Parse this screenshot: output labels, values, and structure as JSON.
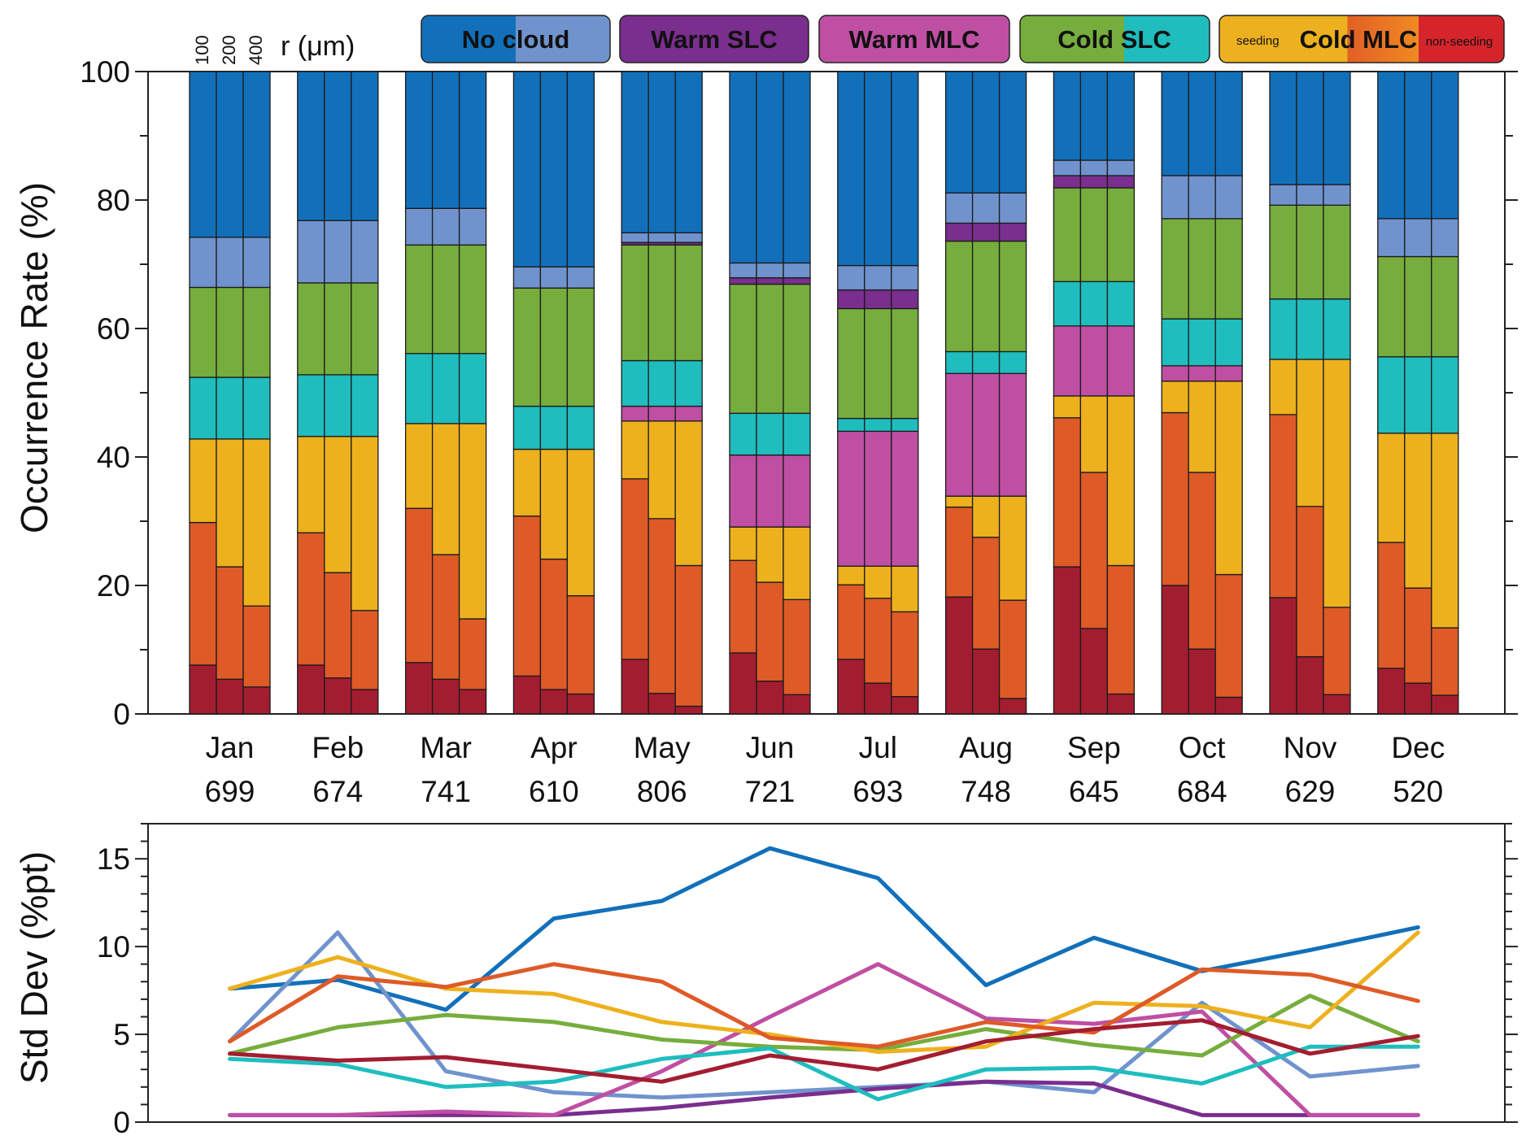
{
  "chart_data": [
    {
      "type": "bar",
      "subtype": "stacked",
      "ylabel": "Occurrence Rate (%)",
      "ylim": [
        0,
        100
      ],
      "yticks": [
        0,
        20,
        40,
        60,
        80,
        100
      ],
      "months": [
        "Jan",
        "Feb",
        "Mar",
        "Apr",
        "May",
        "Jun",
        "Jul",
        "Aug",
        "Sep",
        "Oct",
        "Nov",
        "Dec"
      ],
      "counts": [
        "699",
        "674",
        "741",
        "610",
        "806",
        "721",
        "693",
        "748",
        "645",
        "684",
        "629",
        "520"
      ],
      "radius_header": {
        "ticks": [
          "100",
          "200",
          "400"
        ],
        "label": "r (μm)"
      },
      "legend": [
        {
          "label": "No cloud",
          "colors": [
            "#1270BA",
            "#7093CD"
          ]
        },
        {
          "label": "Warm SLC",
          "colors": [
            "#7A2E8E"
          ]
        },
        {
          "label": "Warm MLC",
          "colors": [
            "#BF4FA3"
          ]
        },
        {
          "label": "Cold SLC",
          "colors": [
            "#76AD3C",
            "#1FBDBE"
          ]
        },
        {
          "label": "Cold MLC",
          "colors": [
            "#EDB01E",
            "#E25F25",
            "#D6242B"
          ],
          "left_note": "seeding",
          "right_note": "non-seeding"
        }
      ],
      "segment_order": [
        "cold_mlc_nonseeding",
        "cold_mlc_partial",
        "cold_mlc_seeding",
        "warm_mlc",
        "cold_slc_ice",
        "cold_slc_liquid",
        "warm_slc",
        "no_cloud_light",
        "no_cloud"
      ],
      "segment_colors": {
        "cold_mlc_nonseeding": "#A31D31",
        "cold_mlc_partial": "#DE5A27",
        "cold_mlc_seeding": "#EDB11E",
        "warm_mlc": "#BF4FA3",
        "cold_slc_ice": "#1FBDBE",
        "cold_slc_liquid": "#76AD3C",
        "warm_slc": "#7A2E8E",
        "no_cloud_light": "#7093CD",
        "no_cloud": "#1270BA"
      },
      "cumulative_boundaries": {
        "Jan": [
          [
            7.6,
            29.8,
            42.8,
            42.8,
            52.4,
            66.4,
            66.4,
            74.2,
            100
          ],
          [
            5.4,
            22.9,
            42.8,
            42.8,
            52.4,
            66.4,
            66.4,
            74.2,
            100
          ],
          [
            4.2,
            16.8,
            42.8,
            42.8,
            52.4,
            66.4,
            66.4,
            74.2,
            100
          ]
        ],
        "Feb": [
          [
            7.6,
            28.2,
            43.2,
            43.2,
            52.8,
            67.1,
            67.1,
            76.8,
            100
          ],
          [
            5.6,
            22.0,
            43.2,
            43.2,
            52.8,
            67.1,
            67.1,
            76.8,
            100
          ],
          [
            3.8,
            16.1,
            43.2,
            43.2,
            52.8,
            67.1,
            67.1,
            76.8,
            100
          ]
        ],
        "Mar": [
          [
            8.0,
            32.0,
            45.2,
            45.2,
            56.1,
            73.0,
            73.0,
            78.7,
            100
          ],
          [
            5.4,
            24.8,
            45.2,
            45.2,
            56.1,
            73.0,
            73.0,
            78.7,
            100
          ],
          [
            3.8,
            14.8,
            45.2,
            45.2,
            56.1,
            73.0,
            73.0,
            78.7,
            100
          ]
        ],
        "Apr": [
          [
            5.9,
            30.8,
            41.2,
            41.2,
            47.9,
            66.3,
            66.3,
            69.6,
            100
          ],
          [
            3.8,
            24.1,
            41.2,
            41.2,
            47.9,
            66.3,
            66.3,
            69.6,
            100
          ],
          [
            3.1,
            18.4,
            41.2,
            41.2,
            47.9,
            66.3,
            66.3,
            69.6,
            100
          ]
        ],
        "May": [
          [
            8.5,
            36.6,
            45.6,
            47.9,
            55.0,
            73.0,
            73.4,
            74.9,
            100
          ],
          [
            3.2,
            30.4,
            45.6,
            47.9,
            55.0,
            73.0,
            73.4,
            74.9,
            100
          ],
          [
            1.2,
            23.1,
            45.6,
            47.9,
            55.0,
            73.0,
            73.4,
            74.9,
            100
          ]
        ],
        "Jun": [
          [
            9.5,
            23.9,
            29.1,
            40.3,
            46.8,
            66.9,
            67.9,
            70.2,
            100
          ],
          [
            5.1,
            20.5,
            29.1,
            40.3,
            46.8,
            66.9,
            67.9,
            70.2,
            100
          ],
          [
            3.0,
            17.8,
            29.1,
            40.3,
            46.8,
            66.9,
            67.9,
            70.2,
            100
          ]
        ],
        "Jul": [
          [
            8.5,
            20.1,
            23.0,
            44.0,
            46.0,
            63.1,
            66.0,
            69.8,
            100
          ],
          [
            4.8,
            18.0,
            23.0,
            44.0,
            46.0,
            63.1,
            66.0,
            69.8,
            100
          ],
          [
            2.7,
            15.9,
            23.0,
            44.0,
            46.0,
            63.1,
            66.0,
            69.8,
            100
          ]
        ],
        "Aug": [
          [
            18.2,
            32.2,
            33.9,
            53.0,
            56.4,
            73.6,
            76.4,
            81.1,
            100
          ],
          [
            10.1,
            27.5,
            33.9,
            53.0,
            56.4,
            73.6,
            76.4,
            81.1,
            100
          ],
          [
            2.4,
            17.7,
            33.9,
            53.0,
            56.4,
            73.6,
            76.4,
            81.1,
            100
          ]
        ],
        "Sep": [
          [
            22.9,
            46.1,
            49.5,
            60.4,
            67.3,
            81.9,
            83.8,
            86.2,
            100
          ],
          [
            13.3,
            37.6,
            49.5,
            60.4,
            67.3,
            81.9,
            83.8,
            86.2,
            100
          ],
          [
            3.1,
            23.1,
            49.5,
            60.4,
            67.3,
            81.9,
            83.8,
            86.2,
            100
          ]
        ],
        "Oct": [
          [
            20.0,
            46.9,
            51.8,
            54.2,
            61.5,
            77.1,
            77.1,
            83.8,
            100
          ],
          [
            10.1,
            37.6,
            51.8,
            54.2,
            61.5,
            77.1,
            77.1,
            83.8,
            100
          ],
          [
            2.6,
            21.7,
            51.8,
            54.2,
            61.5,
            77.1,
            77.1,
            83.8,
            100
          ]
        ],
        "Nov": [
          [
            18.1,
            46.6,
            55.2,
            55.2,
            64.6,
            79.2,
            79.2,
            82.4,
            100
          ],
          [
            8.9,
            32.3,
            55.2,
            55.2,
            64.6,
            79.2,
            79.2,
            82.4,
            100
          ],
          [
            3.0,
            16.6,
            55.2,
            55.2,
            64.6,
            79.2,
            79.2,
            82.4,
            100
          ]
        ],
        "Dec": [
          [
            7.1,
            26.7,
            43.7,
            43.7,
            55.6,
            71.2,
            71.2,
            77.1,
            100
          ],
          [
            4.8,
            19.6,
            43.7,
            43.7,
            55.6,
            71.2,
            71.2,
            77.1,
            100
          ],
          [
            2.9,
            13.4,
            43.7,
            43.7,
            55.6,
            71.2,
            71.2,
            77.1,
            100
          ]
        ]
      }
    },
    {
      "type": "line",
      "ylabel": "Std Dev (%pt)",
      "ylim": [
        0,
        17
      ],
      "yticks": [
        0,
        5,
        10,
        15
      ],
      "x": [
        "Jan",
        "Feb",
        "Mar",
        "Apr",
        "May",
        "Jun",
        "Jul",
        "Aug",
        "Sep",
        "Oct",
        "Nov",
        "Dec"
      ],
      "series": [
        {
          "name": "No cloud",
          "color": "#1270BA",
          "values": [
            7.6,
            8.1,
            6.4,
            11.6,
            12.6,
            15.6,
            13.9,
            7.8,
            10.5,
            8.6,
            9.8,
            11.1
          ]
        },
        {
          "name": "No cloud (light)",
          "color": "#7093CD",
          "values": [
            4.6,
            10.8,
            2.9,
            1.7,
            1.4,
            1.7,
            2.0,
            2.3,
            1.7,
            6.8,
            2.6,
            3.2
          ]
        },
        {
          "name": "Warm SLC",
          "color": "#7A2E8E",
          "values": [
            0.4,
            0.4,
            0.4,
            0.4,
            0.8,
            1.4,
            1.9,
            2.3,
            2.2,
            0.4,
            0.4,
            0.4
          ]
        },
        {
          "name": "Warm MLC",
          "color": "#BF4FA3",
          "values": [
            0.4,
            0.4,
            0.6,
            0.4,
            2.9,
            6.0,
            9.0,
            5.9,
            5.6,
            6.3,
            0.4,
            0.4
          ]
        },
        {
          "name": "Cold SLC (liquid)",
          "color": "#76AD3C",
          "values": [
            3.9,
            5.4,
            6.1,
            5.7,
            4.7,
            4.3,
            4.1,
            5.3,
            4.4,
            3.8,
            7.2,
            4.6
          ]
        },
        {
          "name": "Cold SLC (ice)",
          "color": "#1FBDBE",
          "values": [
            3.6,
            3.3,
            2.0,
            2.3,
            3.6,
            4.2,
            1.3,
            3.0,
            3.1,
            2.2,
            4.3,
            4.3
          ]
        },
        {
          "name": "Cold MLC seeding",
          "color": "#EDB11E",
          "values": [
            7.6,
            9.4,
            7.6,
            7.3,
            5.7,
            5.0,
            4.0,
            4.3,
            6.8,
            6.6,
            5.4,
            10.8
          ]
        },
        {
          "name": "Cold MLC partial",
          "color": "#DE5A27",
          "values": [
            4.6,
            8.3,
            7.7,
            9.0,
            8.0,
            4.8,
            4.3,
            5.7,
            5.1,
            8.7,
            8.4,
            6.9
          ]
        },
        {
          "name": "Cold MLC non-seeding",
          "color": "#A31D31",
          "values": [
            3.9,
            3.5,
            3.7,
            3.0,
            2.3,
            3.8,
            3.0,
            4.6,
            5.3,
            5.8,
            3.9,
            4.9
          ]
        }
      ]
    }
  ]
}
